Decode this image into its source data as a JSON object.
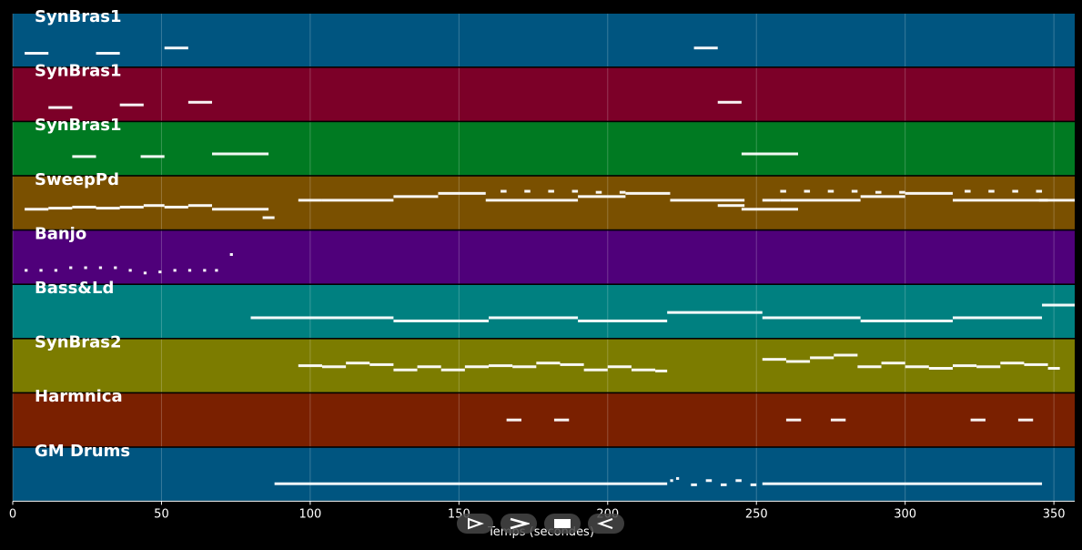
{
  "chart_data": {
    "type": "piano-roll",
    "xlabel": "Temps (secondes)",
    "x_ticks": [
      0,
      50,
      100,
      150,
      200,
      250,
      300,
      350
    ],
    "xlim": [
      0,
      357
    ],
    "grid": true,
    "tracks": [
      {
        "name": "SynBras1",
        "color": "#005580",
        "notes": [
          [
            4,
            12,
            0.25
          ],
          [
            28,
            36,
            0.25
          ],
          [
            51,
            59,
            0.35
          ],
          [
            229,
            237,
            0.35
          ]
        ]
      },
      {
        "name": "SynBras1",
        "color": "#7c0028",
        "notes": [
          [
            12,
            20,
            0.25
          ],
          [
            36,
            44,
            0.3
          ],
          [
            59,
            67,
            0.35
          ],
          [
            237,
            245,
            0.35
          ]
        ]
      },
      {
        "name": "SynBras1",
        "color": "#007a22",
        "notes": [
          [
            20,
            28,
            0.35
          ],
          [
            43,
            51,
            0.35
          ],
          [
            67,
            86,
            0.4
          ],
          [
            245,
            264,
            0.4
          ]
        ]
      },
      {
        "name": "SweepPd",
        "color": "#7a5000",
        "notes": [
          [
            4,
            12,
            0.38
          ],
          [
            12,
            20,
            0.4
          ],
          [
            20,
            28,
            0.42
          ],
          [
            28,
            36,
            0.4
          ],
          [
            36,
            44,
            0.42
          ],
          [
            44,
            51,
            0.45
          ],
          [
            51,
            59,
            0.42
          ],
          [
            59,
            67,
            0.45
          ],
          [
            67,
            86,
            0.38
          ],
          [
            84,
            88,
            0.22
          ],
          [
            96,
            104,
            0.55
          ],
          [
            104,
            128,
            0.55
          ],
          [
            128,
            143,
            0.62
          ],
          [
            143,
            159,
            0.68
          ],
          [
            159,
            190,
            0.55
          ],
          [
            190,
            206,
            0.62
          ],
          [
            206,
            221,
            0.68
          ],
          [
            221,
            246,
            0.55
          ],
          [
            237,
            246,
            0.45
          ],
          [
            245,
            264,
            0.38
          ],
          [
            252,
            258,
            0.55
          ],
          [
            258,
            285,
            0.55
          ],
          [
            285,
            300,
            0.62
          ],
          [
            300,
            316,
            0.68
          ],
          [
            316,
            348,
            0.55
          ],
          [
            345,
            357,
            0.55
          ],
          [
            164,
            166,
            0.72
          ],
          [
            172,
            174,
            0.72
          ],
          [
            180,
            182,
            0.72
          ],
          [
            188,
            190,
            0.72
          ],
          [
            196,
            198,
            0.7
          ],
          [
            204,
            206,
            0.7
          ],
          [
            258,
            260,
            0.72
          ],
          [
            266,
            268,
            0.72
          ],
          [
            274,
            276,
            0.72
          ],
          [
            282,
            284,
            0.72
          ],
          [
            290,
            292,
            0.7
          ],
          [
            298,
            300,
            0.7
          ],
          [
            320,
            322,
            0.72
          ],
          [
            328,
            330,
            0.72
          ],
          [
            336,
            338,
            0.72
          ],
          [
            344,
            346,
            0.72
          ]
        ]
      },
      {
        "name": "Banjo",
        "color": "#4f007a",
        "notes": [
          [
            4,
            5,
            0.25
          ],
          [
            9,
            10,
            0.25
          ],
          [
            14,
            15,
            0.25
          ],
          [
            19,
            20,
            0.3
          ],
          [
            24,
            25,
            0.3
          ],
          [
            29,
            30,
            0.3
          ],
          [
            34,
            35,
            0.3
          ],
          [
            39,
            40,
            0.25
          ],
          [
            44,
            45,
            0.2
          ],
          [
            49,
            50,
            0.22
          ],
          [
            54,
            55,
            0.25
          ],
          [
            59,
            60,
            0.25
          ],
          [
            64,
            65,
            0.25
          ],
          [
            68,
            69,
            0.25
          ],
          [
            73,
            74,
            0.55
          ]
        ]
      },
      {
        "name": "Bass&Ld",
        "color": "#008080",
        "notes": [
          [
            80,
            128,
            0.38
          ],
          [
            128,
            160,
            0.32
          ],
          [
            160,
            190,
            0.38
          ],
          [
            190,
            220,
            0.32
          ],
          [
            220,
            252,
            0.48
          ],
          [
            252,
            285,
            0.38
          ],
          [
            285,
            316,
            0.32
          ],
          [
            316,
            346,
            0.38
          ],
          [
            346,
            357,
            0.62
          ]
        ]
      },
      {
        "name": "SynBras2",
        "color": "#7c7c00",
        "notes": [
          [
            96,
            104,
            0.5
          ],
          [
            104,
            112,
            0.48
          ],
          [
            112,
            120,
            0.55
          ],
          [
            120,
            128,
            0.52
          ],
          [
            128,
            136,
            0.42
          ],
          [
            136,
            144,
            0.48
          ],
          [
            144,
            152,
            0.42
          ],
          [
            152,
            160,
            0.48
          ],
          [
            160,
            168,
            0.5
          ],
          [
            168,
            176,
            0.48
          ],
          [
            176,
            184,
            0.55
          ],
          [
            184,
            192,
            0.52
          ],
          [
            192,
            200,
            0.42
          ],
          [
            200,
            208,
            0.48
          ],
          [
            208,
            216,
            0.42
          ],
          [
            216,
            220,
            0.4
          ],
          [
            252,
            260,
            0.62
          ],
          [
            260,
            268,
            0.58
          ],
          [
            268,
            276,
            0.65
          ],
          [
            276,
            284,
            0.7
          ],
          [
            284,
            292,
            0.48
          ],
          [
            292,
            300,
            0.55
          ],
          [
            300,
            308,
            0.48
          ],
          [
            308,
            316,
            0.45
          ],
          [
            316,
            324,
            0.5
          ],
          [
            324,
            332,
            0.48
          ],
          [
            332,
            340,
            0.55
          ],
          [
            340,
            348,
            0.52
          ],
          [
            348,
            352,
            0.45
          ]
        ]
      },
      {
        "name": "Harmnica",
        "color": "#7a2000",
        "notes": [
          [
            166,
            171,
            0.5
          ],
          [
            182,
            187,
            0.5
          ],
          [
            260,
            265,
            0.5
          ],
          [
            275,
            280,
            0.5
          ],
          [
            322,
            327,
            0.5
          ],
          [
            338,
            343,
            0.5
          ]
        ]
      },
      {
        "name": "GM Drums",
        "color": "#005580",
        "notes": [
          [
            88,
            220,
            0.32
          ],
          [
            221,
            222,
            0.38
          ],
          [
            223,
            224,
            0.42
          ],
          [
            228,
            230,
            0.3
          ],
          [
            233,
            235,
            0.38
          ],
          [
            238,
            240,
            0.3
          ],
          [
            243,
            245,
            0.38
          ],
          [
            248,
            250,
            0.3
          ],
          [
            252,
            346,
            0.32
          ]
        ]
      }
    ]
  },
  "controls": {
    "prev_label": "previous-button",
    "play_label": "play-button",
    "stop_label": "stop-button",
    "next_label": "next-button"
  }
}
